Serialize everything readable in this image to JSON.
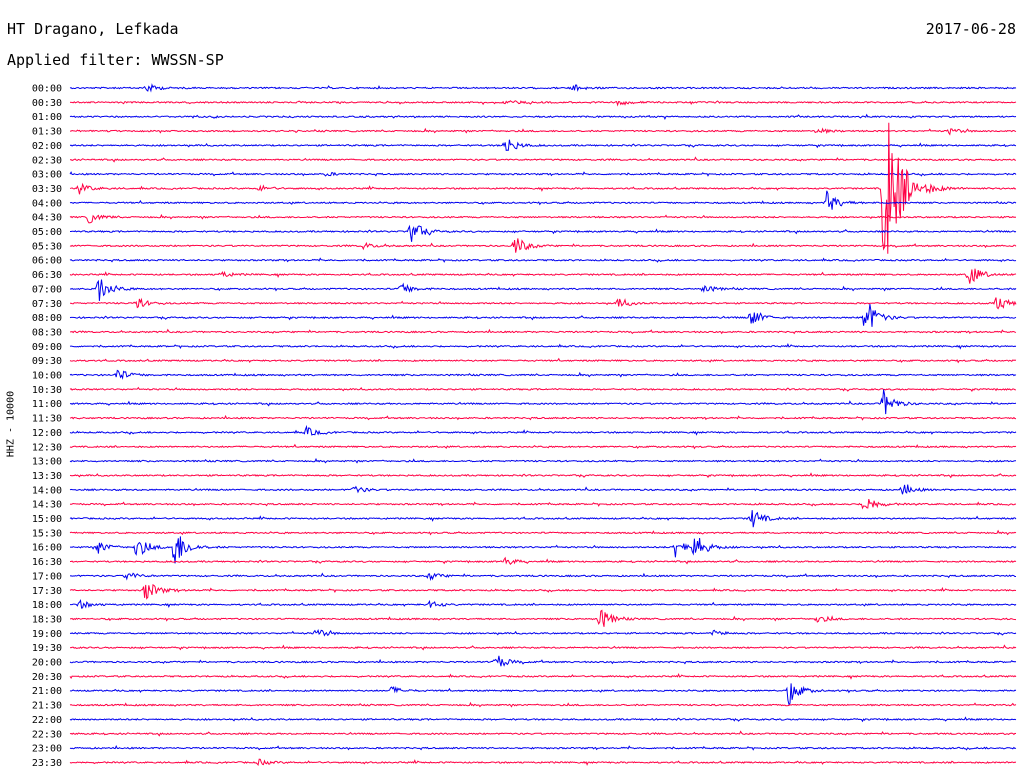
{
  "header": {
    "station": "HT Dragano, Lefkada",
    "date": "2017-06-28",
    "filter": "Applied filter: WWSSN-SP"
  },
  "chart_data": {
    "type": "line",
    "title": "HT Dragano, Lefkada",
    "subtitle": "Applied filter: WWSSN-SP",
    "ylabel": "HHZ - 10000",
    "xlabel": "",
    "grid": false,
    "legend": "none",
    "colors": {
      "even": "#0000ee",
      "odd": "#ff0044"
    },
    "rows": [
      "00:00",
      "00:30",
      "01:00",
      "01:30",
      "02:00",
      "02:30",
      "03:00",
      "03:30",
      "04:00",
      "04:30",
      "05:00",
      "05:30",
      "06:00",
      "06:30",
      "07:00",
      "07:30",
      "08:00",
      "08:30",
      "09:00",
      "09:30",
      "10:00",
      "10:30",
      "11:00",
      "11:30",
      "12:00",
      "12:30",
      "13:00",
      "13:30",
      "14:00",
      "14:30",
      "15:00",
      "15:30",
      "16:00",
      "16:30",
      "17:00",
      "17:30",
      "18:00",
      "18:30",
      "19:00",
      "19:30",
      "20:00",
      "20:30",
      "21:00",
      "21:30",
      "22:00",
      "22:30",
      "23:00",
      "23:30"
    ],
    "events": [
      {
        "row": 0,
        "t": 0.08,
        "amp": 5
      },
      {
        "row": 0,
        "t": 0.53,
        "amp": 4
      },
      {
        "row": 1,
        "t": 0.46,
        "amp": 3
      },
      {
        "row": 1,
        "t": 0.58,
        "amp": 3
      },
      {
        "row": 3,
        "t": 0.79,
        "amp": 3
      },
      {
        "row": 3,
        "t": 0.93,
        "amp": 3
      },
      {
        "row": 4,
        "t": 0.46,
        "amp": 10
      },
      {
        "row": 6,
        "t": 0.27,
        "amp": 2
      },
      {
        "row": 7,
        "t": 0.01,
        "amp": 5
      },
      {
        "row": 7,
        "t": 0.2,
        "amp": 3
      },
      {
        "row": 7,
        "t": 0.86,
        "amp": 100
      },
      {
        "row": 8,
        "t": 0.8,
        "amp": 12
      },
      {
        "row": 9,
        "t": 0.02,
        "amp": 6
      },
      {
        "row": 10,
        "t": 0.36,
        "amp": 14
      },
      {
        "row": 11,
        "t": 0.47,
        "amp": 11
      },
      {
        "row": 11,
        "t": 0.31,
        "amp": 3
      },
      {
        "row": 13,
        "t": 0.16,
        "amp": 3
      },
      {
        "row": 13,
        "t": 0.95,
        "amp": 12
      },
      {
        "row": 14,
        "t": 0.03,
        "amp": 15
      },
      {
        "row": 14,
        "t": 0.35,
        "amp": 6
      },
      {
        "row": 14,
        "t": 0.67,
        "amp": 4
      },
      {
        "row": 15,
        "t": 0.07,
        "amp": 6
      },
      {
        "row": 15,
        "t": 0.58,
        "amp": 5
      },
      {
        "row": 15,
        "t": 0.98,
        "amp": 8
      },
      {
        "row": 16,
        "t": 0.72,
        "amp": 10
      },
      {
        "row": 16,
        "t": 0.84,
        "amp": 24
      },
      {
        "row": 20,
        "t": 0.05,
        "amp": 7
      },
      {
        "row": 22,
        "t": 0.86,
        "amp": 14
      },
      {
        "row": 24,
        "t": 0.25,
        "amp": 5
      },
      {
        "row": 28,
        "t": 0.3,
        "amp": 4
      },
      {
        "row": 28,
        "t": 0.88,
        "amp": 6
      },
      {
        "row": 29,
        "t": 0.84,
        "amp": 12
      },
      {
        "row": 30,
        "t": 0.72,
        "amp": 11
      },
      {
        "row": 32,
        "t": 0.03,
        "amp": 6
      },
      {
        "row": 32,
        "t": 0.07,
        "amp": 12
      },
      {
        "row": 32,
        "t": 0.11,
        "amp": 24
      },
      {
        "row": 32,
        "t": 0.64,
        "amp": 12
      },
      {
        "row": 32,
        "t": 0.66,
        "amp": 14
      },
      {
        "row": 33,
        "t": 0.46,
        "amp": 4
      },
      {
        "row": 34,
        "t": 0.06,
        "amp": 4
      },
      {
        "row": 34,
        "t": 0.38,
        "amp": 4
      },
      {
        "row": 35,
        "t": 0.08,
        "amp": 12
      },
      {
        "row": 36,
        "t": 0.01,
        "amp": 4
      },
      {
        "row": 36,
        "t": 0.38,
        "amp": 4
      },
      {
        "row": 37,
        "t": 0.56,
        "amp": 12
      },
      {
        "row": 37,
        "t": 0.79,
        "amp": 4
      },
      {
        "row": 38,
        "t": 0.26,
        "amp": 5
      },
      {
        "row": 38,
        "t": 0.68,
        "amp": 3
      },
      {
        "row": 40,
        "t": 0.45,
        "amp": 8
      },
      {
        "row": 42,
        "t": 0.34,
        "amp": 4
      },
      {
        "row": 42,
        "t": 0.76,
        "amp": 14
      },
      {
        "row": 47,
        "t": 0.2,
        "amp": 3
      }
    ]
  }
}
